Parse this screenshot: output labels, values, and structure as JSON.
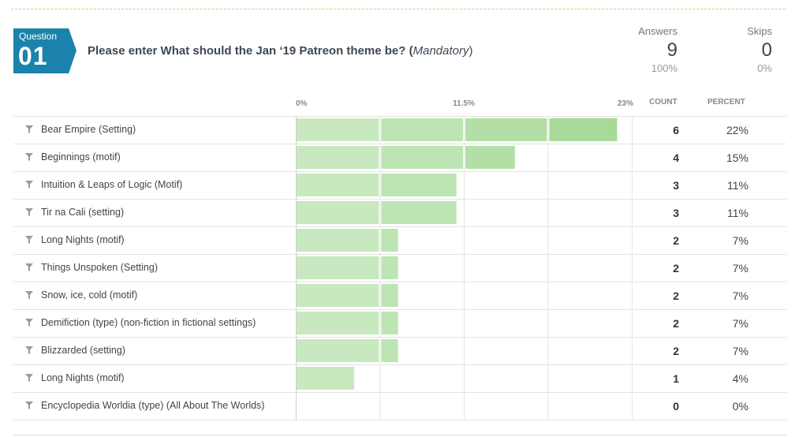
{
  "question": {
    "badge_label": "Question",
    "badge_number": "01",
    "title_main": "Please enter What should the Jan ‘19 Patreon theme be? (",
    "title_mandatory": "Mandatory",
    "title_close": ")"
  },
  "stats": {
    "answers_label": "Answers",
    "answers_value": "9",
    "answers_pct": "100%",
    "skips_label": "Skips",
    "skips_value": "0",
    "skips_pct": "0%"
  },
  "columns": {
    "count": "COUNT",
    "percent": "PERCENT"
  },
  "icons": {
    "filter": "filter-funnel-icon"
  },
  "colors": {
    "bar_light": "#c6e8bf",
    "bar_dark": "#9ed68f",
    "badge": "#1b83ab"
  },
  "chart_data": {
    "type": "bar",
    "orientation": "horizontal",
    "x_ticks": [
      "0%",
      "11.5%",
      "23%"
    ],
    "xlim": [
      0,
      23
    ],
    "categories": [
      "Bear Empire (Setting)",
      "Beginnings (motif)",
      "Intuition & Leaps of Logic (Motif)",
      "Tir na Cali (setting)",
      "Long Nights (motif)",
      "Things Unspoken (Setting)",
      "Snow, ice, cold (motif)",
      "Demifiction (type) (non-fiction in fictional settings)",
      "Blizzarded (setting)",
      "Long Nights (motif)",
      "Encyclopedia Worldia (type) (All About The Worlds)"
    ],
    "values": [
      22,
      15,
      11,
      11,
      7,
      7,
      7,
      7,
      7,
      4,
      0
    ],
    "counts": [
      "6",
      "4",
      "3",
      "3",
      "2",
      "2",
      "2",
      "2",
      "2",
      "1",
      "0"
    ],
    "percent_labels": [
      "22%",
      "15%",
      "11%",
      "11%",
      "7%",
      "7%",
      "7%",
      "7%",
      "7%",
      "4%",
      "0%"
    ]
  }
}
